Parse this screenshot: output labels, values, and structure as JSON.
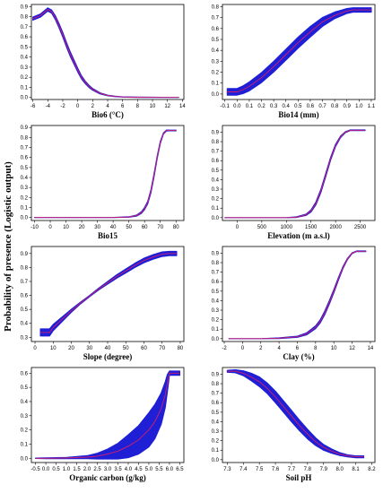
{
  "figure": {
    "y_axis_label": "Probability of presence (Logistic output)",
    "band_color": "#1f1fd6",
    "line_color": "#d21f6e"
  },
  "chart_data": [
    {
      "type": "line",
      "xlabel": "Bio6 (°C)",
      "xlim": [
        -6.2,
        14.2
      ],
      "ylim": [
        -0.02,
        0.92
      ],
      "xticks": [
        -6,
        -4,
        -2,
        0,
        2,
        4,
        6,
        8,
        10,
        12,
        14
      ],
      "xtick_labels": [
        "-6",
        "-4",
        "-2",
        "0",
        "2",
        "4",
        "6",
        "8",
        "10",
        "12",
        "14"
      ],
      "yticks": [
        0,
        0.1,
        0.2,
        0.3,
        0.4,
        0.5,
        0.6,
        0.7,
        0.8,
        0.9
      ],
      "ytick_labels": [
        "0.0",
        "0.1",
        "0.2",
        "0.3",
        "0.4",
        "0.5",
        "0.6",
        "0.7",
        "0.8",
        "0.9"
      ],
      "series": [
        {
          "x": [
            -6,
            -5,
            -4,
            -3.5,
            -3,
            -2.5,
            -2,
            -1.5,
            -1,
            -0.5,
            0,
            0.5,
            1,
            1.5,
            2,
            3,
            4,
            5,
            6,
            8,
            10,
            12,
            13.5
          ],
          "y": [
            0.78,
            0.81,
            0.87,
            0.85,
            0.79,
            0.71,
            0.62,
            0.52,
            0.43,
            0.35,
            0.27,
            0.2,
            0.15,
            0.11,
            0.08,
            0.04,
            0.02,
            0.01,
            0.005,
            0.002,
            0.001,
            0.0,
            0.0
          ],
          "band": [
            0.015,
            0.015,
            0.015,
            0.015,
            0.018,
            0.02,
            0.022,
            0.022,
            0.022,
            0.02,
            0.018,
            0.015,
            0.012,
            0.01,
            0.008,
            0.005,
            0.003,
            0.002,
            0.001,
            0.001,
            0.001,
            0.0,
            0.0
          ]
        }
      ]
    },
    {
      "type": "line",
      "xlabel": "Bio14 (mm)",
      "xlim": [
        -0.12,
        1.13
      ],
      "ylim": [
        -0.05,
        0.82
      ],
      "xticks": [
        -0.1,
        0,
        0.1,
        0.2,
        0.3,
        0.4,
        0.5,
        0.6,
        0.7,
        0.8,
        0.9,
        1.0,
        1.1
      ],
      "xtick_labels": [
        "-0.1",
        "0.0",
        "0.1",
        "0.2",
        "0.3",
        "0.4",
        "0.5",
        "0.6",
        "0.7",
        "0.8",
        "0.9",
        "1.0",
        "1.1"
      ],
      "yticks": [
        0,
        0.1,
        0.2,
        0.3,
        0.4,
        0.5,
        0.6,
        0.7,
        0.8
      ],
      "ytick_labels": [
        "0.0",
        "0.1",
        "0.2",
        "0.3",
        "0.4",
        "0.5",
        "0.6",
        "0.7",
        "0.8"
      ],
      "series": [
        {
          "x": [
            -0.08,
            0,
            0.05,
            0.1,
            0.2,
            0.3,
            0.4,
            0.5,
            0.6,
            0.7,
            0.8,
            0.9,
            0.95,
            1.0,
            1.1
          ],
          "y": [
            0.02,
            0.02,
            0.04,
            0.07,
            0.15,
            0.25,
            0.36,
            0.47,
            0.57,
            0.66,
            0.72,
            0.76,
            0.77,
            0.77,
            0.77
          ],
          "band": [
            0.03,
            0.03,
            0.035,
            0.04,
            0.045,
            0.048,
            0.05,
            0.05,
            0.048,
            0.04,
            0.03,
            0.022,
            0.02,
            0.02,
            0.02
          ]
        }
      ]
    },
    {
      "type": "line",
      "xlabel": "Bio15",
      "xlim": [
        -12,
        85
      ],
      "ylim": [
        -0.03,
        0.92
      ],
      "xticks": [
        -10,
        0,
        10,
        20,
        30,
        40,
        50,
        60,
        70,
        80
      ],
      "xtick_labels": [
        "-10",
        "0",
        "10",
        "20",
        "30",
        "40",
        "50",
        "60",
        "70",
        "80"
      ],
      "yticks": [
        0,
        0.1,
        0.2,
        0.3,
        0.4,
        0.5,
        0.6,
        0.7,
        0.8,
        0.9
      ],
      "ytick_labels": [
        "0.0",
        "0.1",
        "0.2",
        "0.3",
        "0.4",
        "0.5",
        "0.6",
        "0.7",
        "0.8",
        "0.9"
      ],
      "series": [
        {
          "x": [
            -10,
            0,
            20,
            40,
            50,
            55,
            58,
            60,
            62,
            64,
            66,
            68,
            70,
            72,
            74,
            76,
            80
          ],
          "y": [
            0.0,
            0.0,
            0.0,
            0.0,
            0.005,
            0.02,
            0.05,
            0.09,
            0.15,
            0.26,
            0.42,
            0.6,
            0.75,
            0.84,
            0.87,
            0.87,
            0.87
          ],
          "band": [
            0.0,
            0.0,
            0.0,
            0.0,
            0.002,
            0.005,
            0.008,
            0.01,
            0.012,
            0.014,
            0.014,
            0.012,
            0.01,
            0.006,
            0.004,
            0.003,
            0.003
          ]
        }
      ]
    },
    {
      "type": "line",
      "xlabel": "Elevation (m a.s.l)",
      "xlim": [
        -300,
        2800
      ],
      "ylim": [
        -0.03,
        0.97
      ],
      "xticks": [
        0,
        500,
        1000,
        1500,
        2000,
        2500
      ],
      "xtick_labels": [
        "0",
        "500",
        "1000",
        "1500",
        "2000",
        "2500"
      ],
      "yticks": [
        0,
        0.1,
        0.2,
        0.3,
        0.4,
        0.5,
        0.6,
        0.7,
        0.8,
        0.9
      ],
      "ytick_labels": [
        "0.0",
        "0.1",
        "0.2",
        "0.3",
        "0.4",
        "0.5",
        "0.6",
        "0.7",
        "0.8",
        "0.9"
      ],
      "series": [
        {
          "x": [
            -250,
            0,
            500,
            1000,
            1200,
            1400,
            1500,
            1600,
            1700,
            1800,
            1900,
            2000,
            2100,
            2200,
            2300,
            2400,
            2600
          ],
          "y": [
            0.0,
            0.0,
            0.0,
            0.0,
            0.005,
            0.03,
            0.07,
            0.15,
            0.28,
            0.45,
            0.62,
            0.76,
            0.85,
            0.9,
            0.92,
            0.92,
            0.92
          ],
          "band": [
            0.0,
            0.0,
            0.0,
            0.0,
            0.003,
            0.006,
            0.01,
            0.014,
            0.016,
            0.016,
            0.014,
            0.012,
            0.008,
            0.005,
            0.003,
            0.003,
            0.003
          ]
        }
      ]
    },
    {
      "type": "line",
      "xlabel": "Slope (degree)",
      "xlim": [
        -2,
        82
      ],
      "ylim": [
        0.27,
        0.95
      ],
      "xticks": [
        0,
        10,
        20,
        30,
        40,
        50,
        60,
        70,
        80
      ],
      "xtick_labels": [
        "0",
        "10",
        "20",
        "30",
        "40",
        "50",
        "60",
        "70",
        "80"
      ],
      "yticks": [
        0.3,
        0.4,
        0.5,
        0.6,
        0.7,
        0.8,
        0.9
      ],
      "ytick_labels": [
        "0.3",
        "0.4",
        "0.5",
        "0.6",
        "0.7",
        "0.8",
        "0.9"
      ],
      "series": [
        {
          "x": [
            3,
            8,
            10,
            15,
            20,
            25,
            30,
            35,
            40,
            45,
            50,
            55,
            60,
            65,
            70,
            74,
            78
          ],
          "y": [
            0.335,
            0.335,
            0.37,
            0.43,
            0.49,
            0.545,
            0.595,
            0.645,
            0.69,
            0.735,
            0.775,
            0.815,
            0.85,
            0.875,
            0.895,
            0.9,
            0.9
          ],
          "band": [
            0.025,
            0.025,
            0.022,
            0.016,
            0.01,
            0.006,
            0.004,
            0.006,
            0.009,
            0.012,
            0.014,
            0.015,
            0.016,
            0.016,
            0.016,
            0.015,
            0.015
          ]
        }
      ]
    },
    {
      "type": "line",
      "xlabel": "Clay (%)",
      "xlim": [
        -2.2,
        14.5
      ],
      "ylim": [
        -0.03,
        0.97
      ],
      "xticks": [
        -2,
        0,
        2,
        4,
        6,
        8,
        10,
        12,
        14
      ],
      "xtick_labels": [
        "-2",
        "0",
        "2",
        "4",
        "6",
        "8",
        "10",
        "12",
        "14"
      ],
      "yticks": [
        0,
        0.1,
        0.2,
        0.3,
        0.4,
        0.5,
        0.6,
        0.7,
        0.8,
        0.9
      ],
      "ytick_labels": [
        "0.0",
        "0.1",
        "0.2",
        "0.3",
        "0.4",
        "0.5",
        "0.6",
        "0.7",
        "0.8",
        "0.9"
      ],
      "series": [
        {
          "x": [
            -1.5,
            0,
            2,
            4,
            6,
            7,
            8,
            8.5,
            9,
            9.5,
            10,
            10.5,
            11,
            11.5,
            12,
            12.5,
            13.5
          ],
          "y": [
            0.0,
            0.0,
            0.0,
            0.005,
            0.02,
            0.05,
            0.12,
            0.18,
            0.27,
            0.38,
            0.5,
            0.63,
            0.75,
            0.84,
            0.9,
            0.92,
            0.92
          ],
          "band": [
            0.0,
            0.0,
            0.0,
            0.003,
            0.006,
            0.01,
            0.014,
            0.016,
            0.018,
            0.018,
            0.016,
            0.014,
            0.01,
            0.006,
            0.004,
            0.003,
            0.003
          ]
        }
      ]
    },
    {
      "type": "line",
      "xlabel": "Organic carbon (g/kg)",
      "xlim": [
        -0.7,
        6.7
      ],
      "ylim": [
        -0.03,
        0.64
      ],
      "xticks": [
        -0.5,
        0,
        0.5,
        1.0,
        1.5,
        2.0,
        2.5,
        3.0,
        3.5,
        4.0,
        4.5,
        5.0,
        5.5,
        6.0,
        6.5
      ],
      "xtick_labels": [
        "-0.5",
        "0.0",
        "0.5",
        "1.0",
        "1.5",
        "2.0",
        "2.5",
        "3.0",
        "3.5",
        "4.0",
        "4.5",
        "5.0",
        "5.5",
        "6.0",
        "6.5"
      ],
      "yticks": [
        0,
        0.1,
        0.2,
        0.3,
        0.4,
        0.5,
        0.6
      ],
      "ytick_labels": [
        "0.0",
        "0.1",
        "0.2",
        "0.3",
        "0.4",
        "0.5",
        "0.6"
      ],
      "series": [
        {
          "x": [
            -0.5,
            0,
            1,
            2,
            2.5,
            3,
            3.5,
            4,
            4.5,
            5,
            5.3,
            5.6,
            5.8,
            5.9,
            6.0,
            6.2,
            6.5
          ],
          "y": [
            0.0,
            0.0,
            0.002,
            0.008,
            0.015,
            0.03,
            0.05,
            0.085,
            0.13,
            0.2,
            0.26,
            0.35,
            0.45,
            0.53,
            0.6,
            0.6,
            0.6
          ],
          "band": [
            0.001,
            0.002,
            0.004,
            0.01,
            0.02,
            0.035,
            0.055,
            0.08,
            0.1,
            0.12,
            0.12,
            0.11,
            0.09,
            0.06,
            0.015,
            0.015,
            0.015
          ]
        }
      ]
    },
    {
      "type": "line",
      "xlabel": "Soil pH",
      "xlim": [
        7.27,
        8.22
      ],
      "ylim": [
        -0.03,
        0.97
      ],
      "xticks": [
        7.3,
        7.4,
        7.5,
        7.6,
        7.7,
        7.8,
        7.9,
        8.0,
        8.1,
        8.2
      ],
      "xtick_labels": [
        "7.3",
        "7.4",
        "7.5",
        "7.6",
        "7.7",
        "7.8",
        "7.9",
        "8.0",
        "8.1",
        "8.2"
      ],
      "yticks": [
        0,
        0.1,
        0.2,
        0.3,
        0.4,
        0.5,
        0.6,
        0.7,
        0.8,
        0.9
      ],
      "ytick_labels": [
        "0.0",
        "0.1",
        "0.2",
        "0.3",
        "0.4",
        "0.5",
        "0.6",
        "0.7",
        "0.8",
        "0.9"
      ],
      "series": [
        {
          "x": [
            7.3,
            7.35,
            7.4,
            7.45,
            7.5,
            7.55,
            7.6,
            7.65,
            7.7,
            7.75,
            7.8,
            7.85,
            7.9,
            7.95,
            8.0,
            8.05,
            8.1,
            8.15
          ],
          "y": [
            0.93,
            0.93,
            0.91,
            0.87,
            0.82,
            0.75,
            0.66,
            0.56,
            0.46,
            0.36,
            0.27,
            0.19,
            0.13,
            0.09,
            0.06,
            0.04,
            0.03,
            0.03
          ],
          "band": [
            0.01,
            0.015,
            0.025,
            0.04,
            0.05,
            0.055,
            0.06,
            0.06,
            0.06,
            0.055,
            0.05,
            0.04,
            0.03,
            0.022,
            0.015,
            0.01,
            0.01,
            0.01
          ]
        }
      ]
    }
  ]
}
